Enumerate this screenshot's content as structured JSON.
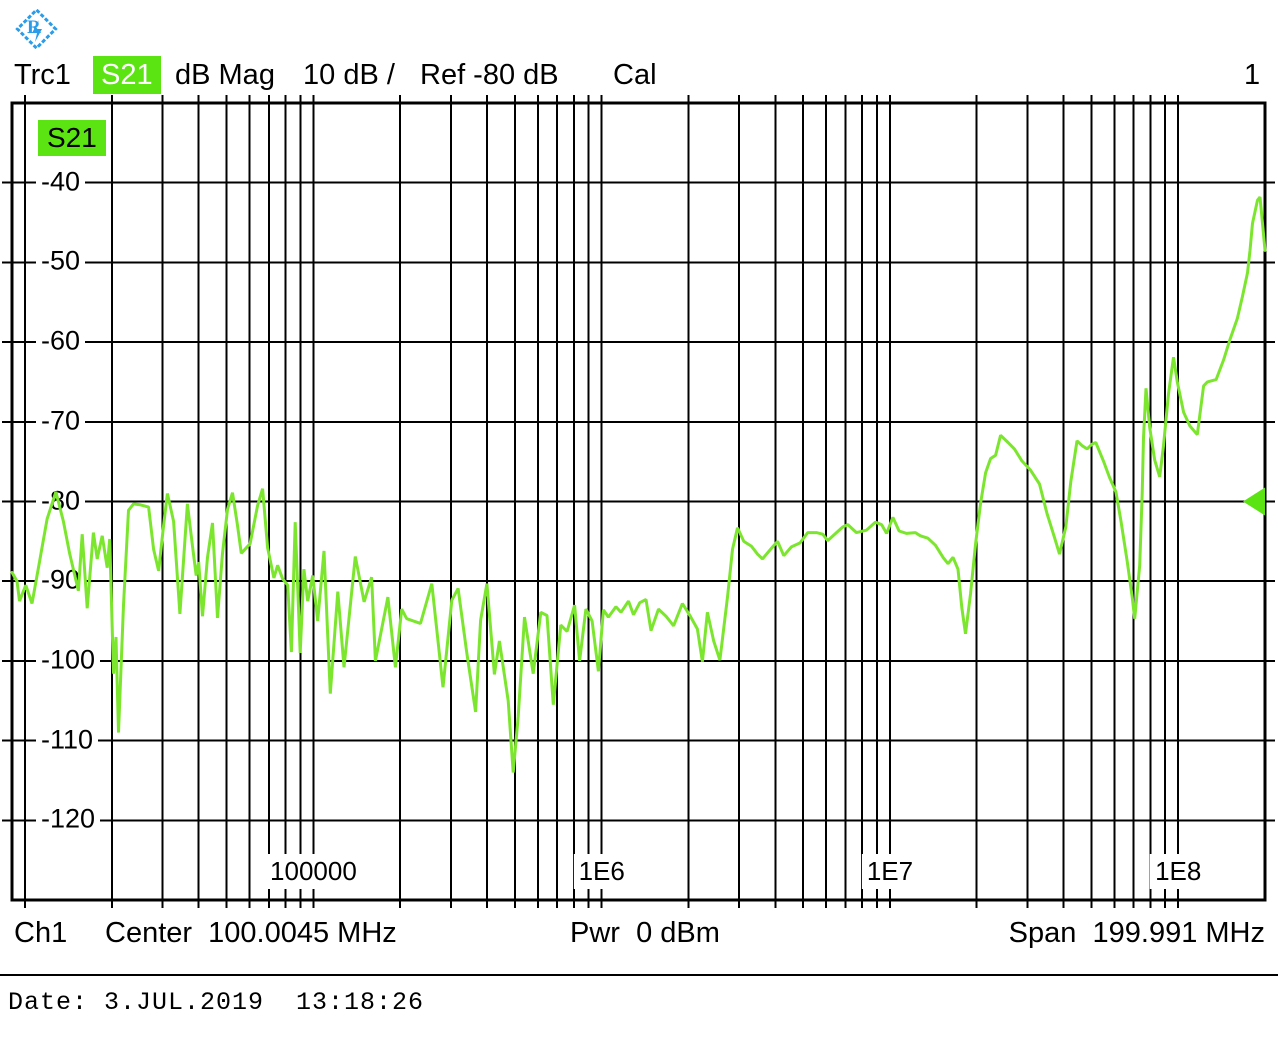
{
  "header": {
    "trace_name": "Trc1",
    "measurement": "S21",
    "format": "dB Mag",
    "scale": "10 dB /",
    "reference": "Ref -80 dB",
    "cal": "Cal",
    "screen_number": "1"
  },
  "plot": {
    "trace_badge": "S21"
  },
  "footer": {
    "channel": "Ch1",
    "center_label": "Center",
    "center_value": "100.0045 MHz",
    "power_label": "Pwr",
    "power_value": "0 dBm",
    "span_label": "Span",
    "span_value": "199.991 MHz"
  },
  "status": {
    "datetime": "Date: 3.JUL.2019  13:18:26"
  },
  "colors": {
    "trace_green": "#7CE62E",
    "accent_green": "#5BE411",
    "logo_blue": "#2B9CE8",
    "grid_black": "#000000"
  },
  "chart_data": {
    "type": "line",
    "title": "Trc1 S21 dB Mag 10 dB / Ref -80 dB",
    "x_axis": {
      "scale": "log",
      "unit": "Hz",
      "min": 9000,
      "max": 200000000,
      "center_mhz": 100.0045,
      "span_mhz": 199.991,
      "tick_labels": [
        {
          "label": "100000",
          "freq": 100000
        },
        {
          "label": "1E6",
          "freq": 1000000
        },
        {
          "label": "1E7",
          "freq": 10000000
        },
        {
          "label": "1E8",
          "freq": 100000000
        }
      ]
    },
    "y_axis": {
      "unit": "dB",
      "max": -30,
      "min": -130,
      "db_per_div": 10,
      "ref_level_db": -80,
      "tick_labels": [
        -40,
        -50,
        -60,
        -70,
        -80,
        -90,
        -100,
        -110,
        -120
      ]
    },
    "grid": true,
    "ref_marker": {
      "position": "right-edge",
      "level_db": -80
    },
    "series": [
      {
        "name": "S21",
        "color": "#7CE62E",
        "x_encoding": "fraction along log-frequency axis 9 kHz..200 MHz",
        "points": [
          [
            0.0,
            -88.9
          ],
          [
            0.004,
            -90.0
          ],
          [
            0.006,
            -92.5
          ],
          [
            0.011,
            -90.5
          ],
          [
            0.016,
            -92.8
          ],
          [
            0.022,
            -87.5
          ],
          [
            0.028,
            -82.2
          ],
          [
            0.035,
            -78.8
          ],
          [
            0.041,
            -82.5
          ],
          [
            0.046,
            -86.5
          ],
          [
            0.053,
            -91.2
          ],
          [
            0.056,
            -84.1
          ],
          [
            0.06,
            -93.4
          ],
          [
            0.065,
            -83.9
          ],
          [
            0.068,
            -87.2
          ],
          [
            0.072,
            -84.3
          ],
          [
            0.076,
            -88.3
          ],
          [
            0.078,
            -84.7
          ],
          [
            0.081,
            -101.6
          ],
          [
            0.083,
            -97.0
          ],
          [
            0.085,
            -109.0
          ],
          [
            0.089,
            -93.0
          ],
          [
            0.093,
            -81.1
          ],
          [
            0.097,
            -80.3
          ],
          [
            0.102,
            -80.4
          ],
          [
            0.109,
            -80.7
          ],
          [
            0.113,
            -86.0
          ],
          [
            0.117,
            -88.7
          ],
          [
            0.121,
            -83.0
          ],
          [
            0.124,
            -79.0
          ],
          [
            0.129,
            -82.5
          ],
          [
            0.134,
            -94.1
          ],
          [
            0.14,
            -80.3
          ],
          [
            0.144,
            -85.5
          ],
          [
            0.147,
            -89.3
          ],
          [
            0.149,
            -87.6
          ],
          [
            0.152,
            -94.4
          ],
          [
            0.156,
            -87.0
          ],
          [
            0.16,
            -82.7
          ],
          [
            0.164,
            -94.6
          ],
          [
            0.168,
            -86.5
          ],
          [
            0.172,
            -81.0
          ],
          [
            0.176,
            -78.9
          ],
          [
            0.18,
            -83.0
          ],
          [
            0.183,
            -86.5
          ],
          [
            0.19,
            -85.3
          ],
          [
            0.196,
            -80.5
          ],
          [
            0.2,
            -78.4
          ],
          [
            0.204,
            -85.8
          ],
          [
            0.209,
            -89.6
          ],
          [
            0.212,
            -88.0
          ],
          [
            0.216,
            -89.7
          ],
          [
            0.22,
            -90.5
          ],
          [
            0.223,
            -98.9
          ],
          [
            0.226,
            -82.6
          ],
          [
            0.23,
            -99.0
          ],
          [
            0.233,
            -88.5
          ],
          [
            0.236,
            -92.5
          ],
          [
            0.24,
            -89.3
          ],
          [
            0.244,
            -95.0
          ],
          [
            0.249,
            -86.2
          ],
          [
            0.254,
            -104.1
          ],
          [
            0.26,
            -91.3
          ],
          [
            0.265,
            -100.8
          ],
          [
            0.274,
            -86.9
          ],
          [
            0.281,
            -92.6
          ],
          [
            0.287,
            -89.5
          ],
          [
            0.29,
            -100.0
          ],
          [
            0.3,
            -92.0
          ],
          [
            0.306,
            -100.8
          ],
          [
            0.311,
            -93.5
          ],
          [
            0.315,
            -94.7
          ],
          [
            0.326,
            -95.3
          ],
          [
            0.335,
            -90.3
          ],
          [
            0.344,
            -103.3
          ],
          [
            0.351,
            -92.4
          ],
          [
            0.356,
            -90.9
          ],
          [
            0.363,
            -99.0
          ],
          [
            0.37,
            -106.4
          ],
          [
            0.374,
            -94.9
          ],
          [
            0.379,
            -90.3
          ],
          [
            0.385,
            -101.7
          ],
          [
            0.389,
            -97.5
          ],
          [
            0.396,
            -105.0
          ],
          [
            0.4,
            -114.0
          ],
          [
            0.404,
            -107.0
          ],
          [
            0.409,
            -94.5
          ],
          [
            0.416,
            -101.6
          ],
          [
            0.422,
            -93.9
          ],
          [
            0.427,
            -94.3
          ],
          [
            0.432,
            -105.5
          ],
          [
            0.438,
            -95.5
          ],
          [
            0.443,
            -96.3
          ],
          [
            0.449,
            -93.0
          ],
          [
            0.453,
            -100.0
          ],
          [
            0.458,
            -93.5
          ],
          [
            0.463,
            -95.0
          ],
          [
            0.468,
            -101.3
          ],
          [
            0.472,
            -93.6
          ],
          [
            0.476,
            -94.5
          ],
          [
            0.482,
            -93.2
          ],
          [
            0.486,
            -93.9
          ],
          [
            0.492,
            -92.5
          ],
          [
            0.496,
            -94.2
          ],
          [
            0.501,
            -92.7
          ],
          [
            0.506,
            -92.3
          ],
          [
            0.51,
            -96.2
          ],
          [
            0.516,
            -93.5
          ],
          [
            0.522,
            -94.4
          ],
          [
            0.528,
            -95.6
          ],
          [
            0.535,
            -92.8
          ],
          [
            0.541,
            -94.3
          ],
          [
            0.547,
            -96.0
          ],
          [
            0.551,
            -100.1
          ],
          [
            0.555,
            -93.9
          ],
          [
            0.56,
            -97.5
          ],
          [
            0.565,
            -99.9
          ],
          [
            0.571,
            -92.0
          ],
          [
            0.575,
            -86.0
          ],
          [
            0.579,
            -83.3
          ],
          [
            0.584,
            -85.0
          ],
          [
            0.59,
            -85.6
          ],
          [
            0.595,
            -86.6
          ],
          [
            0.599,
            -87.2
          ],
          [
            0.607,
            -85.7
          ],
          [
            0.611,
            -85.0
          ],
          [
            0.616,
            -86.8
          ],
          [
            0.622,
            -85.7
          ],
          [
            0.629,
            -85.2
          ],
          [
            0.635,
            -83.9
          ],
          [
            0.642,
            -83.9
          ],
          [
            0.647,
            -84.1
          ],
          [
            0.651,
            -84.9
          ],
          [
            0.658,
            -83.9
          ],
          [
            0.663,
            -83.2
          ],
          [
            0.667,
            -82.9
          ],
          [
            0.674,
            -83.9
          ],
          [
            0.682,
            -83.6
          ],
          [
            0.689,
            -82.6
          ],
          [
            0.694,
            -82.9
          ],
          [
            0.698,
            -84.0
          ],
          [
            0.703,
            -82.0
          ],
          [
            0.708,
            -83.7
          ],
          [
            0.714,
            -84.0
          ],
          [
            0.721,
            -83.9
          ],
          [
            0.725,
            -84.3
          ],
          [
            0.731,
            -84.6
          ],
          [
            0.737,
            -85.5
          ],
          [
            0.743,
            -87.0
          ],
          [
            0.747,
            -87.8
          ],
          [
            0.751,
            -87.0
          ],
          [
            0.755,
            -88.5
          ],
          [
            0.758,
            -93.3
          ],
          [
            0.761,
            -96.6
          ],
          [
            0.765,
            -91.6
          ],
          [
            0.769,
            -85.3
          ],
          [
            0.773,
            -80.2
          ],
          [
            0.777,
            -76.4
          ],
          [
            0.781,
            -74.6
          ],
          [
            0.785,
            -74.2
          ],
          [
            0.789,
            -71.7
          ],
          [
            0.795,
            -72.6
          ],
          [
            0.8,
            -73.4
          ],
          [
            0.806,
            -74.9
          ],
          [
            0.813,
            -76.1
          ],
          [
            0.82,
            -77.8
          ],
          [
            0.826,
            -81.5
          ],
          [
            0.832,
            -84.5
          ],
          [
            0.836,
            -86.6
          ],
          [
            0.841,
            -83.2
          ],
          [
            0.845,
            -77.5
          ],
          [
            0.85,
            -72.4
          ],
          [
            0.854,
            -73.0
          ],
          [
            0.858,
            -73.4
          ],
          [
            0.862,
            -72.8
          ],
          [
            0.865,
            -72.6
          ],
          [
            0.871,
            -74.9
          ],
          [
            0.876,
            -77.0
          ],
          [
            0.881,
            -78.8
          ],
          [
            0.885,
            -82.4
          ],
          [
            0.89,
            -87.5
          ],
          [
            0.894,
            -92.0
          ],
          [
            0.896,
            -94.7
          ],
          [
            0.9,
            -88.0
          ],
          [
            0.902,
            -79.0
          ],
          [
            0.903,
            -72.0
          ],
          [
            0.905,
            -65.8
          ],
          [
            0.908,
            -70.7
          ],
          [
            0.912,
            -74.8
          ],
          [
            0.916,
            -76.9
          ],
          [
            0.919,
            -73.0
          ],
          [
            0.923,
            -66.5
          ],
          [
            0.927,
            -61.9
          ],
          [
            0.93,
            -65.0
          ],
          [
            0.935,
            -68.8
          ],
          [
            0.94,
            -70.5
          ],
          [
            0.946,
            -71.6
          ],
          [
            0.951,
            -65.5
          ],
          [
            0.954,
            -65.0
          ],
          [
            0.961,
            -64.7
          ],
          [
            0.967,
            -62.2
          ],
          [
            0.972,
            -59.7
          ],
          [
            0.978,
            -57.0
          ],
          [
            0.982,
            -54.3
          ],
          [
            0.986,
            -51.3
          ],
          [
            0.988,
            -48.5
          ],
          [
            0.99,
            -45.1
          ],
          [
            0.994,
            -42.2
          ],
          [
            0.996,
            -41.8
          ],
          [
            0.998,
            -45.1
          ],
          [
            1.0,
            -48.5
          ]
        ]
      }
    ]
  }
}
